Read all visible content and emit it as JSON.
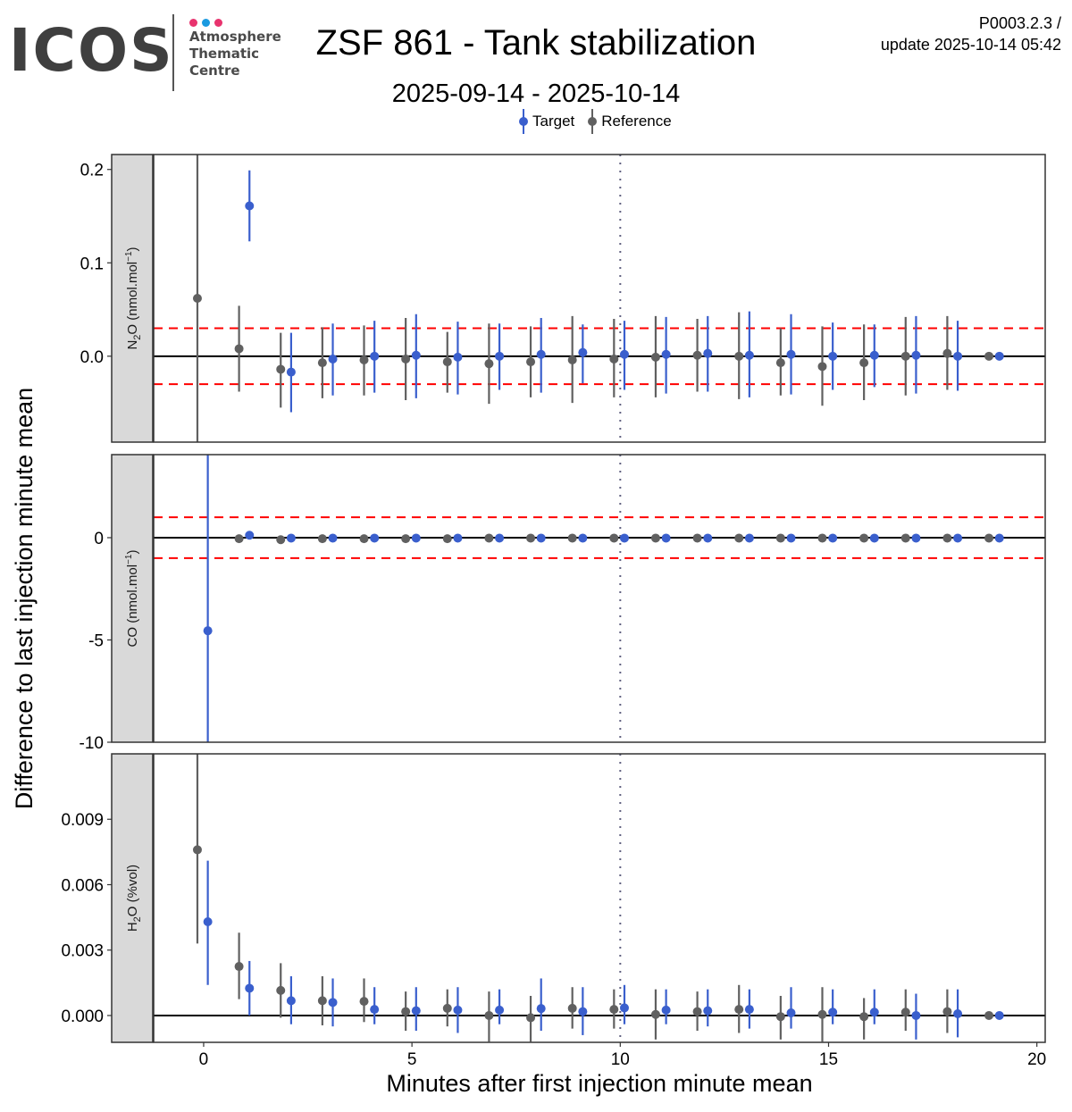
{
  "header": {
    "logo": {
      "name": "ICOS",
      "subtitle_lines": [
        "Atmosphere",
        "Thematic",
        "Centre"
      ],
      "dot_colors": [
        "#e8336e",
        "#1a9ae0",
        "#e8336e"
      ]
    },
    "title": "ZSF 861 - Tank stabilization",
    "subtitle": "2025-09-14 - 2025-10-14",
    "code": "P0003.2.3 /",
    "update": "update  2025-10-14 05:42"
  },
  "legend": [
    {
      "label": "Target",
      "color": "#3a5fcd"
    },
    {
      "label": "Reference",
      "color": "#606060"
    }
  ],
  "chart_data": {
    "type": "scatter",
    "subtype": "pointrange-facets",
    "title": "ZSF 861 - Tank stabilization",
    "subtitle": "2025-09-14 - 2025-10-14",
    "xlabel": "Minutes after first injection minute mean",
    "ylabel": "Difference to last injection minute mean",
    "xlim": [
      -1.2,
      20.2
    ],
    "xticks": [
      0,
      5,
      10,
      15,
      20
    ],
    "vline_x": 10,
    "legend_position": "top",
    "series_colors": {
      "Target": "#3a5fcd",
      "Reference": "#606060"
    },
    "reference_x": [
      -0.15,
      0.85,
      1.85,
      2.85,
      3.85,
      4.85,
      5.85,
      6.85,
      7.85,
      8.85,
      9.85,
      10.85,
      11.85,
      12.85,
      13.85,
      14.85,
      15.85,
      16.85,
      17.85,
      18.85
    ],
    "target_x": [
      0.1,
      1.1,
      2.1,
      3.1,
      4.1,
      5.1,
      6.1,
      7.1,
      8.1,
      9.1,
      10.1,
      11.1,
      12.1,
      13.1,
      14.1,
      15.1,
      16.1,
      17.1,
      18.1,
      19.1
    ],
    "panels": [
      {
        "strip": "N2O (nmol.mol-1)",
        "ylim": [
          -0.092,
          0.216
        ],
        "yticks": [
          0.0,
          0.1,
          0.2
        ],
        "ytick_labels": [
          "0.0",
          "0.1",
          "0.2"
        ],
        "threshold": 0.03,
        "series": [
          {
            "name": "Reference",
            "y": [
              0.062,
              0.008,
              -0.014,
              -0.007,
              -0.004,
              -0.003,
              -0.006,
              -0.008,
              -0.006,
              -0.004,
              -0.003,
              -0.001,
              0.001,
              0.0,
              -0.007,
              -0.011,
              -0.007,
              0.0,
              0.003,
              0.0
            ],
            "ymin": [
              -0.092,
              -0.038,
              -0.055,
              -0.045,
              -0.042,
              -0.047,
              -0.039,
              -0.051,
              -0.044,
              -0.05,
              -0.044,
              -0.044,
              -0.038,
              -0.046,
              -0.042,
              -0.053,
              -0.047,
              -0.042,
              -0.036,
              0.0
            ],
            "ymax": [
              0.216,
              0.054,
              0.025,
              0.031,
              0.033,
              0.041,
              0.026,
              0.035,
              0.032,
              0.043,
              0.04,
              0.043,
              0.04,
              0.047,
              0.03,
              0.032,
              0.034,
              0.042,
              0.043,
              0.0
            ]
          },
          {
            "name": "Target",
            "y": [
              null,
              0.161,
              -0.017,
              -0.003,
              0.0,
              0.001,
              -0.001,
              0.0,
              0.002,
              0.004,
              0.002,
              0.002,
              0.003,
              0.001,
              0.002,
              0.0,
              0.001,
              0.001,
              0.0,
              0.0
            ],
            "ymin": [
              null,
              0.123,
              -0.06,
              -0.042,
              -0.039,
              -0.045,
              -0.041,
              -0.036,
              -0.039,
              -0.029,
              -0.036,
              -0.04,
              -0.038,
              -0.044,
              -0.041,
              -0.036,
              -0.033,
              -0.04,
              -0.037,
              0.0
            ],
            "ymax": [
              null,
              0.199,
              0.025,
              0.035,
              0.038,
              0.045,
              0.037,
              0.035,
              0.041,
              0.034,
              0.038,
              0.042,
              0.043,
              0.048,
              0.045,
              0.036,
              0.034,
              0.043,
              0.038,
              0.0
            ]
          }
        ]
      },
      {
        "strip": "CO (nmol.mol-1)",
        "ylim": [
          -10.0,
          4.06
        ],
        "yticks": [
          0,
          -5,
          -10
        ],
        "ytick_labels": [
          "0",
          "-5",
          "-10"
        ],
        "threshold": 1.0,
        "series": [
          {
            "name": "Reference",
            "y": [
              null,
              -0.05,
              -0.1,
              -0.05,
              -0.05,
              -0.05,
              -0.05,
              -0.02,
              -0.02,
              -0.02,
              -0.02,
              -0.02,
              -0.02,
              -0.02,
              -0.02,
              -0.02,
              -0.02,
              -0.02,
              -0.02,
              -0.02
            ],
            "ymin": [
              null,
              -0.05,
              -0.1,
              -0.05,
              -0.05,
              -0.05,
              -0.05,
              -0.02,
              -0.02,
              -0.02,
              -0.02,
              -0.02,
              -0.02,
              -0.02,
              -0.02,
              -0.02,
              -0.02,
              -0.02,
              -0.02,
              -0.02
            ],
            "ymax": [
              null,
              -0.05,
              -0.1,
              -0.05,
              -0.05,
              -0.05,
              -0.05,
              -0.02,
              -0.02,
              -0.02,
              -0.02,
              -0.02,
              -0.02,
              -0.02,
              -0.02,
              -0.02,
              -0.02,
              -0.02,
              -0.02,
              -0.02
            ]
          },
          {
            "name": "Target",
            "y": [
              -4.55,
              0.12,
              -0.02,
              -0.02,
              -0.02,
              -0.02,
              -0.02,
              -0.02,
              -0.02,
              -0.02,
              -0.02,
              -0.02,
              -0.02,
              -0.02,
              -0.02,
              -0.02,
              -0.02,
              -0.02,
              -0.02,
              -0.02
            ],
            "ymin": [
              -10.0,
              0.12,
              -0.02,
              -0.02,
              -0.02,
              -0.02,
              -0.02,
              -0.02,
              -0.02,
              -0.02,
              -0.02,
              -0.02,
              -0.02,
              -0.02,
              -0.02,
              -0.02,
              -0.02,
              -0.02,
              -0.02,
              -0.02
            ],
            "ymax": [
              4.06,
              0.12,
              -0.02,
              -0.02,
              -0.02,
              -0.02,
              -0.02,
              -0.02,
              -0.02,
              -0.02,
              -0.02,
              -0.02,
              -0.02,
              -0.02,
              -0.02,
              -0.02,
              -0.02,
              -0.02,
              -0.02,
              -0.02
            ]
          }
        ]
      },
      {
        "strip": "H2O (%vol)",
        "ylim": [
          -0.00123,
          0.012
        ],
        "yticks": [
          0.0,
          0.003,
          0.006,
          0.009
        ],
        "ytick_labels": [
          "0.000",
          "0.003",
          "0.006",
          "0.009"
        ],
        "threshold": null,
        "series": [
          {
            "name": "Reference",
            "y": [
              0.0076,
              0.00225,
              0.00115,
              0.00068,
              0.00065,
              0.00018,
              0.00033,
              0.0,
              -0.0001,
              0.00033,
              0.00028,
              5e-05,
              0.00018,
              0.00028,
              -5e-05,
              5e-05,
              -5e-05,
              0.00015,
              0.00018,
              0.0
            ],
            "ymin": [
              0.0033,
              0.00075,
              -0.0001,
              -0.00045,
              -0.0003,
              -0.0007,
              -0.0005,
              -0.0012,
              -0.0012,
              -0.0006,
              -0.0006,
              -0.0011,
              -0.0007,
              -0.0008,
              -0.0011,
              -0.0012,
              -0.0011,
              -0.0007,
              -0.0008,
              0.0
            ],
            "ymax": [
              0.012,
              0.0038,
              0.0024,
              0.0018,
              0.0017,
              0.0011,
              0.0012,
              0.0011,
              0.0009,
              0.0013,
              0.0012,
              0.0012,
              0.0011,
              0.0014,
              0.0009,
              0.0013,
              0.0008,
              0.0012,
              0.0012,
              0.0
            ]
          },
          {
            "name": "Target",
            "y": [
              0.0043,
              0.00125,
              0.00068,
              0.0006,
              0.00028,
              0.00022,
              0.00025,
              0.00025,
              0.00032,
              0.00018,
              0.00035,
              0.00025,
              0.00022,
              0.00028,
              0.00012,
              0.00015,
              0.00015,
              0.0,
              8e-05,
              0.0
            ],
            "ymin": [
              0.0014,
              0.0,
              -0.0004,
              -0.0005,
              -0.0004,
              -0.0007,
              -0.0008,
              -0.0004,
              -0.0007,
              -0.0009,
              -0.0004,
              -0.0004,
              -0.0005,
              -0.0006,
              -0.0006,
              -0.0004,
              -0.0004,
              -0.0011,
              -0.001,
              0.0
            ],
            "ymax": [
              0.0071,
              0.0025,
              0.0018,
              0.0017,
              0.0013,
              0.0013,
              0.0013,
              0.0012,
              0.0017,
              0.0013,
              0.0014,
              0.0012,
              0.0012,
              0.0012,
              0.0013,
              0.0012,
              0.0012,
              0.001,
              0.0012,
              0.0
            ]
          }
        ]
      }
    ]
  }
}
